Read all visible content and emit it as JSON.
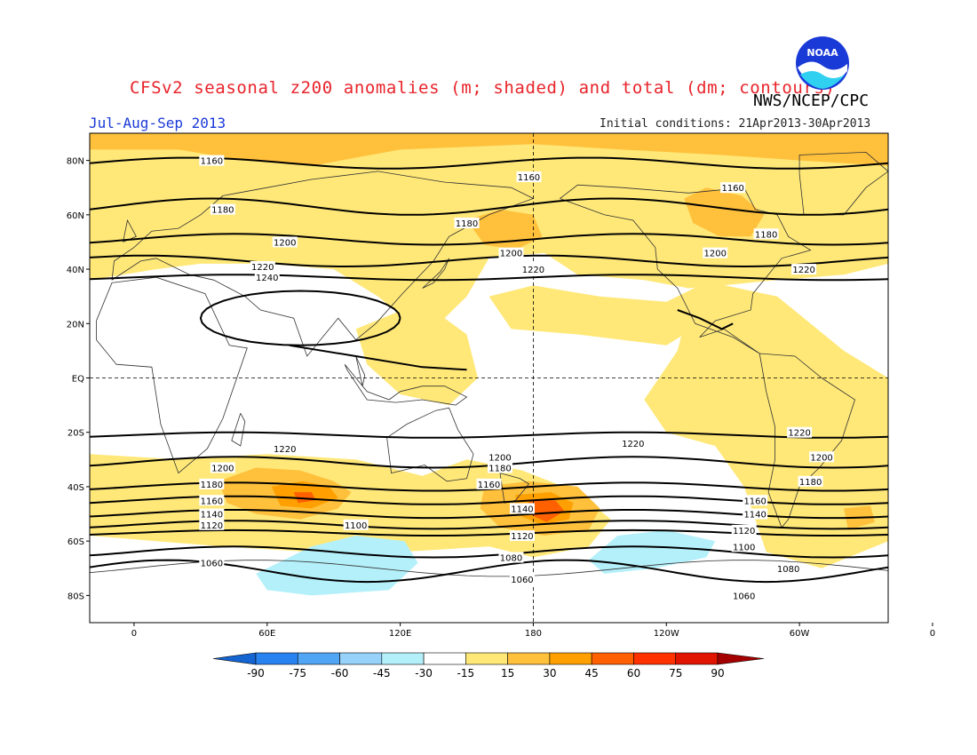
{
  "header": {
    "title": "CFSv2 seasonal z200 anomalies (m; shaded) and total (dm; contours)",
    "agency": "NWS/NCEP/CPC",
    "season": "Jul-Aug-Sep 2013",
    "initial_conditions": "Initial conditions: 21Apr2013-30Apr2013",
    "logo_text": "NOAA"
  },
  "map": {
    "lon_range": [
      -20,
      340
    ],
    "lat_range": [
      -90,
      90
    ],
    "lat_ticks": [
      {
        "lat": 80,
        "label": "80N"
      },
      {
        "lat": 60,
        "label": "60N"
      },
      {
        "lat": 40,
        "label": "40N"
      },
      {
        "lat": 20,
        "label": "20N"
      },
      {
        "lat": 0,
        "label": "EQ"
      },
      {
        "lat": -20,
        "label": "20S"
      },
      {
        "lat": -40,
        "label": "40S"
      },
      {
        "lat": -60,
        "label": "60S"
      },
      {
        "lat": -80,
        "label": "80S"
      }
    ],
    "lon_ticks": [
      {
        "lon": 0,
        "label": "0"
      },
      {
        "lon": 60,
        "label": "60E"
      },
      {
        "lon": 120,
        "label": "120E"
      },
      {
        "lon": 180,
        "label": "180"
      },
      {
        "lon": 240,
        "label": "120W"
      },
      {
        "lon": 300,
        "label": "60W"
      },
      {
        "lon": 360,
        "label": "0"
      }
    ]
  },
  "legend": {
    "labels": [
      "-90",
      "-75",
      "-60",
      "-45",
      "-30",
      "-15",
      "15",
      "30",
      "45",
      "60",
      "75",
      "90"
    ],
    "colors": [
      "#1464d2",
      "#2882f0",
      "#50a5f5",
      "#96d2fa",
      "#b4f0fa",
      "#ffffff",
      "#ffe878",
      "#ffc03c",
      "#ffa000",
      "#ff6000",
      "#ff3200",
      "#e11400",
      "#a50000"
    ]
  },
  "contours": [
    {
      "label": "1240",
      "band": "subtropics"
    },
    {
      "label": "1220"
    },
    {
      "label": "1200"
    },
    {
      "label": "1180"
    },
    {
      "label": "1160"
    },
    {
      "label": "1140"
    },
    {
      "label": "1120"
    },
    {
      "label": "1100"
    },
    {
      "label": "1080"
    },
    {
      "label": "1060"
    }
  ]
}
